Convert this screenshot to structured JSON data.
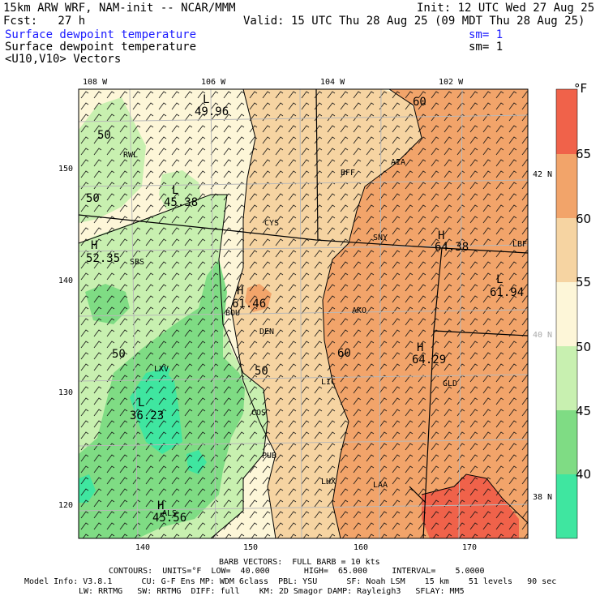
{
  "header": {
    "model_title": "15km ARW WRF, NAM-init -- NCAR/MMM",
    "init": "Init: 12 UTC Wed 27 Aug 25",
    "fcst": "Fcst:   27 h",
    "valid": "Valid: 15 UTC Thu 28 Aug 25 (09 MDT Thu 28 Aug 25)",
    "field1": "Surface dewpoint temperature",
    "field1_sm": "sm= 1",
    "field2": "Surface dewpoint temperature",
    "field2_sm": "sm= 1",
    "vectors": "<U10,V10> Vectors"
  },
  "axes": {
    "top_lon": [
      "108 W",
      "106 W",
      "104 W",
      "102 W"
    ],
    "bottom": [
      "140",
      "150",
      "160",
      "170"
    ],
    "left": [
      "150",
      "140",
      "130",
      "120"
    ],
    "right_lat": [
      "42 N",
      "40 N",
      "38 N"
    ]
  },
  "colorbar": {
    "unit": "°F",
    "ticks": [
      "65",
      "60",
      "55",
      "50",
      "45",
      "40"
    ],
    "colors": [
      "#f0624a",
      "#f2a46a",
      "#f6d4a2",
      "#fdf6d8",
      "#c8f0b0",
      "#7fdc84",
      "#3fe6a0"
    ]
  },
  "palette": {
    "d35": "#3fe6a0",
    "d40": "#7fdc84",
    "d45": "#c8f0b0",
    "d50": "#fdf6d8",
    "d55": "#f6d4a2",
    "d60": "#f2a46a",
    "d65": "#f0624a"
  },
  "labels": {
    "contours": [
      {
        "text": "50"
      },
      {
        "text": "50"
      },
      {
        "text": "50"
      },
      {
        "text": "50"
      },
      {
        "text": "60"
      },
      {
        "text": "60"
      }
    ],
    "extrema": [
      {
        "type": "L",
        "value": "49.96"
      },
      {
        "type": "L",
        "value": "45.38"
      },
      {
        "type": "H",
        "value": "52.35"
      },
      {
        "type": "H",
        "value": "61.46"
      },
      {
        "type": "H",
        "value": "64.38"
      },
      {
        "type": "L",
        "value": "61.94"
      },
      {
        "type": "H",
        "value": "64.29"
      },
      {
        "type": "L",
        "value": "36.23"
      },
      {
        "type": "H",
        "value": "45.56"
      }
    ],
    "stations": [
      "RWL",
      "BFF",
      "AIA",
      "CYS",
      "SNY",
      "LBF",
      "SBS",
      "BOU",
      "DEN",
      "AKO",
      "LIC",
      "GLD",
      "COS",
      "LXV",
      "PUB",
      "LHX",
      "LAA",
      "ALS"
    ]
  },
  "footer": {
    "barb": "BARB VECTORS:  FULL BARB = 10 kts",
    "contours": "CONTOURS:  UNITS=°F  LOW=  40.000       HIGH=  65.000     INTERVAL=    5.0000",
    "model_info": "Model Info: V3.8.1      CU: G-F Ens MP: WDM 6class  PBL: YSU      SF: Noah LSM    15 km    51 levels   90 sec",
    "model_info2": "LW: RRTMG   SW: RRTMG  DIFF: full    KM: 2D Smagor DAMP: Rayleigh3   SFLAY: MM5"
  }
}
